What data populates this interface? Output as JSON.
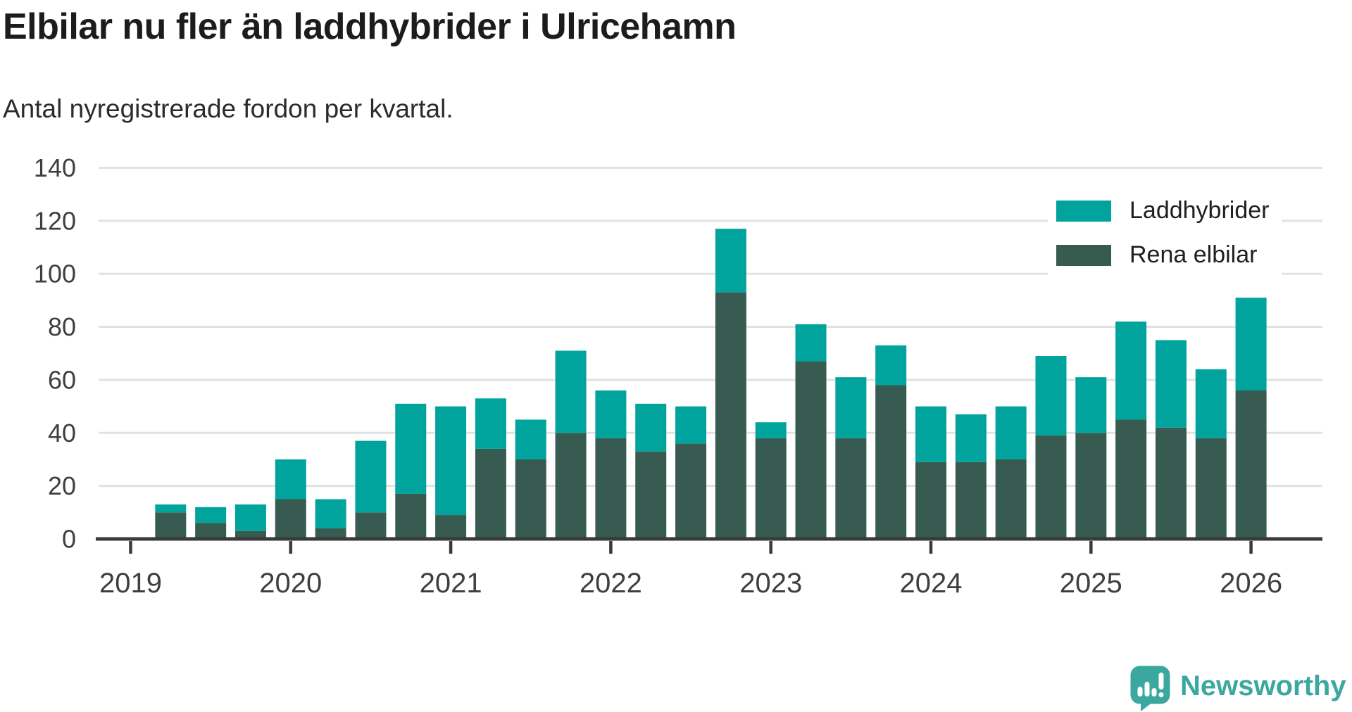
{
  "title": "Elbilar nu fler än laddhybrider i Ulricehamn",
  "subtitle": "Antal nyregistrerade fordon per kvartal.",
  "colors": {
    "laddhybrider": "#00a49c",
    "rena_elbilar": "#375b51",
    "axis": "#3a3a3a",
    "gridline": "#e2e2e2",
    "tick_text": "#3f3f3f",
    "brand_teal": "#3ba89f"
  },
  "legend": {
    "items": [
      {
        "label": "Laddhybrider",
        "color": "#00a49c"
      },
      {
        "label": "Rena elbilar",
        "color": "#375b51"
      }
    ]
  },
  "branding": {
    "name": "Newsworthy",
    "icon": "newsworthy-speech-bubble-bar-chart-icon"
  },
  "chart_data": {
    "type": "bar",
    "stacked": true,
    "title": "Elbilar nu fler än laddhybrider i Ulricehamn",
    "subtitle": "Antal nyregistrerade fordon per kvartal.",
    "ylabel": "Antal nyregistrerade fordon",
    "x_years": [
      "2019",
      "2020",
      "2021",
      "2022",
      "2023",
      "2024",
      "2025",
      "2026"
    ],
    "quarters": [
      "2019 Q2",
      "2019 Q3",
      "2019 Q4",
      "2020 Q1",
      "2020 Q2",
      "2020 Q3",
      "2020 Q4",
      "2021 Q1",
      "2021 Q2",
      "2021 Q3",
      "2021 Q4",
      "2022 Q1",
      "2022 Q2",
      "2022 Q3",
      "2022 Q4",
      "2023 Q1",
      "2023 Q2",
      "2023 Q3",
      "2023 Q4",
      "2024 Q1",
      "2024 Q2",
      "2024 Q3",
      "2024 Q4",
      "2025 Q1",
      "2025 Q2",
      "2025 Q3",
      "2025 Q4",
      "2026 Q1"
    ],
    "series": [
      {
        "name": "Laddhybrider",
        "color": "#00a49c",
        "stack_position": "top",
        "values": [
          3,
          6,
          10,
          15,
          11,
          27,
          34,
          41,
          19,
          15,
          31,
          18,
          18,
          14,
          24,
          6,
          14,
          23,
          15,
          21,
          18,
          20,
          30,
          21,
          37,
          33,
          26,
          35
        ]
      },
      {
        "name": "Rena elbilar",
        "color": "#375b51",
        "stack_position": "bottom",
        "values": [
          10,
          6,
          3,
          15,
          4,
          10,
          17,
          9,
          34,
          30,
          40,
          38,
          33,
          36,
          93,
          38,
          67,
          38,
          58,
          29,
          29,
          30,
          39,
          40,
          45,
          42,
          38,
          56
        ]
      }
    ],
    "totals": [
      13,
      12,
      13,
      30,
      15,
      37,
      51,
      50,
      53,
      45,
      71,
      56,
      51,
      50,
      117,
      44,
      81,
      61,
      73,
      50,
      47,
      50,
      69,
      61,
      82,
      75,
      64,
      91
    ],
    "y_ticks": [
      0,
      20,
      40,
      60,
      80,
      100,
      120,
      140
    ],
    "ylim": [
      0,
      140
    ],
    "grid": true,
    "legend_position": "top-right"
  }
}
